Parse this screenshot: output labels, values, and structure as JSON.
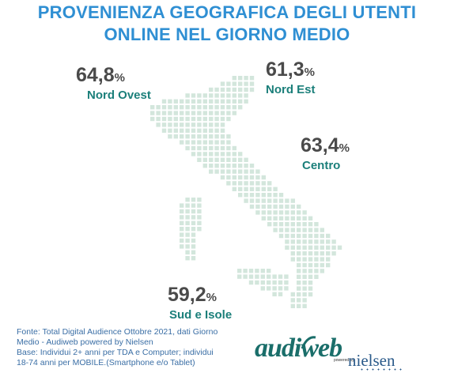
{
  "title_lines": [
    "PROVENIENZA GEOGRAFICA DEGLI UTENTI",
    "ONLINE NEL GIORNO MEDIO"
  ],
  "chart_data": {
    "type": "map",
    "unit": "%",
    "regions": [
      {
        "name": "Nord Ovest",
        "value": "64,8",
        "unit": "%"
      },
      {
        "name": "Nord Est",
        "value": "61,3",
        "unit": "%"
      },
      {
        "name": "Centro",
        "value": "63,4",
        "unit": "%"
      },
      {
        "name": "Sud e Isole",
        "value": "59,2",
        "unit": "%"
      }
    ]
  },
  "footnote_lines": [
    "Fonte: Total Digital Audience Ottobre 2021, dati Giorno",
    "Medio - Audiweb powered by Nielsen",
    "Base:  Individui 2+ anni per TDA e Computer; individui",
    "18-74 anni per MOBILE.(Smartphone e/o Tablet)"
  ],
  "logo": {
    "brand": "audiweb",
    "powered": "powered by",
    "partner": "nielsen"
  },
  "colors": {
    "title": "#2f8fd3",
    "value": "#4a4a4a",
    "label": "#1b7f7a",
    "map_dot": "#d3e6dc",
    "footnote": "#3a6ea5"
  }
}
